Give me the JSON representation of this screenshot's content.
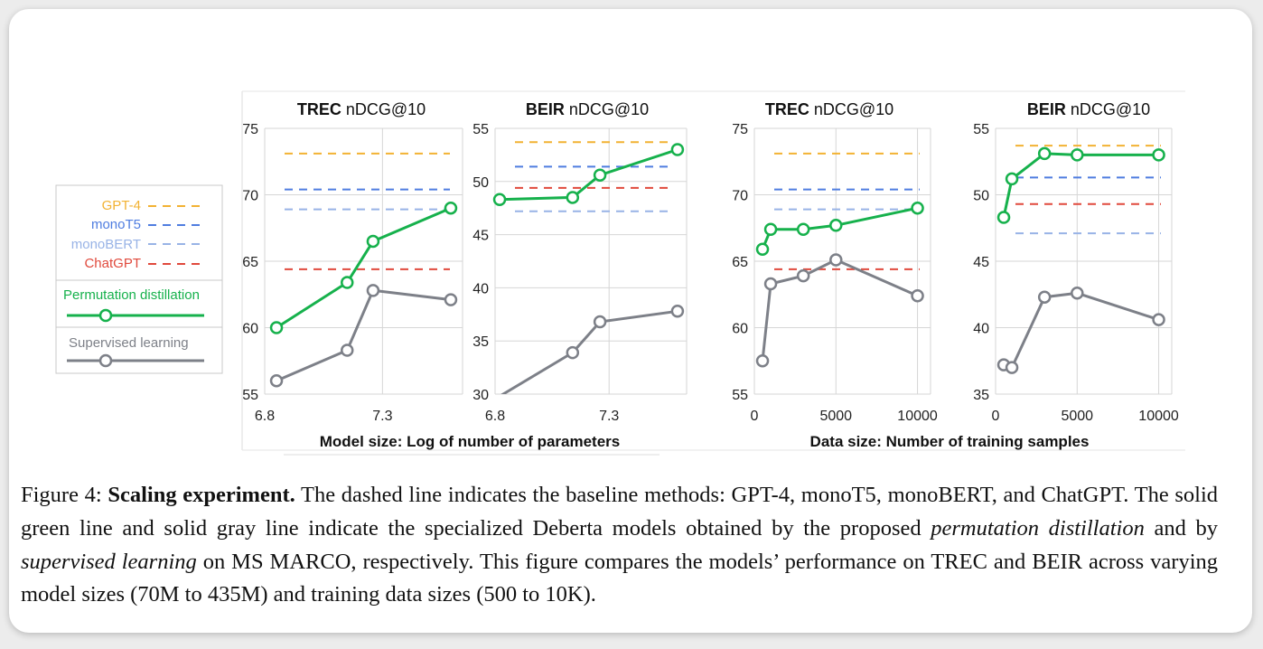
{
  "colors": {
    "gpt4": "#f2b233",
    "monot5": "#4f7de0",
    "monobert": "#98b3e6",
    "chatgpt": "#e0493c",
    "permutation": "#16b14c",
    "supervised": "#7d8088",
    "grid": "#d6d6d6"
  },
  "legend": {
    "gpt4": "GPT-4",
    "monot5": "monoT5",
    "monobert": "monoBERT",
    "chatgpt": "ChatGPT",
    "permutation": "Permutation distillation",
    "supervised": "Supervised learning"
  },
  "xlabels": {
    "left": "Model size: Log of number of parameters",
    "right": "Data size: Number of training samples"
  },
  "chart_data": [
    {
      "type": "line",
      "title_bold": "TREC",
      "title_rest": "nDCG@10",
      "ylim": [
        55,
        75
      ],
      "yticks": [
        55,
        60,
        65,
        70,
        75
      ],
      "xlim": [
        6.8,
        7.64
      ],
      "xticks": [
        6.8,
        7.3
      ],
      "xtick_labels": [
        "6.8",
        "7.3"
      ],
      "baselines": {
        "GPT-4": 73.1,
        "monoT5": 70.4,
        "monoBERT": 68.9,
        "ChatGPT": 64.4
      },
      "series": [
        {
          "name": "Permutation distillation",
          "x": [
            6.85,
            7.15,
            7.26,
            7.59
          ],
          "y": [
            60.0,
            63.4,
            66.5,
            69.0
          ]
        },
        {
          "name": "Supervised learning",
          "x": [
            6.85,
            7.15,
            7.26,
            7.59
          ],
          "y": [
            56.0,
            58.3,
            62.8,
            62.1
          ]
        }
      ]
    },
    {
      "type": "line",
      "title_bold": "BEIR",
      "title_rest": "nDCG@10",
      "ylim": [
        30,
        55
      ],
      "yticks": [
        30,
        35,
        40,
        45,
        50,
        55
      ],
      "xlim": [
        6.8,
        7.64
      ],
      "xticks": [
        6.8,
        7.3
      ],
      "xtick_labels": [
        "6.8",
        "7.3"
      ],
      "baselines": {
        "GPT-4": 53.7,
        "monoT5": 51.4,
        "monoBERT": 47.2,
        "ChatGPT": 49.4
      },
      "series": [
        {
          "name": "Permutation distillation",
          "x": [
            6.82,
            7.14,
            7.26,
            7.6
          ],
          "y": [
            48.3,
            48.5,
            50.6,
            53.0
          ]
        },
        {
          "name": "Supervised learning",
          "x": [
            6.82,
            7.14,
            7.26,
            7.6
          ],
          "y": [
            29.8,
            33.9,
            36.8,
            37.8
          ]
        }
      ]
    },
    {
      "type": "line",
      "title_bold": "TREC",
      "title_rest": "nDCG@10",
      "ylim": [
        55,
        75
      ],
      "yticks": [
        55,
        60,
        65,
        70,
        75
      ],
      "xlim": [
        0,
        10800
      ],
      "xticks": [
        0,
        5000,
        10000
      ],
      "xtick_labels": [
        "0",
        "5000",
        "10000"
      ],
      "baselines": {
        "GPT-4": 73.1,
        "monoT5": 70.4,
        "monoBERT": 68.9,
        "ChatGPT": 64.4
      },
      "series": [
        {
          "name": "Permutation distillation",
          "x": [
            500,
            1000,
            3000,
            5000,
            10000
          ],
          "y": [
            65.9,
            67.4,
            67.4,
            67.7,
            69.0
          ]
        },
        {
          "name": "Supervised learning",
          "x": [
            500,
            1000,
            3000,
            5000,
            10000
          ],
          "y": [
            57.5,
            63.3,
            63.9,
            65.1,
            62.4
          ]
        }
      ]
    },
    {
      "type": "line",
      "title_bold": "BEIR",
      "title_rest": "nDCG@10",
      "ylim": [
        35,
        55
      ],
      "yticks": [
        35,
        40,
        45,
        50,
        55
      ],
      "xlim": [
        0,
        10800
      ],
      "xticks": [
        0,
        5000,
        10000
      ],
      "xtick_labels": [
        "0",
        "5000",
        "10000"
      ],
      "baselines": {
        "GPT-4": 53.7,
        "monoT5": 51.3,
        "monoBERT": 47.1,
        "ChatGPT": 49.3
      },
      "series": [
        {
          "name": "Permutation distillation",
          "x": [
            500,
            1000,
            3000,
            5000,
            10000
          ],
          "y": [
            48.3,
            51.2,
            53.1,
            53.0,
            53.0
          ]
        },
        {
          "name": "Supervised learning",
          "x": [
            500,
            1000,
            3000,
            5000,
            10000
          ],
          "y": [
            37.2,
            37.0,
            42.3,
            42.6,
            40.6
          ]
        }
      ]
    }
  ],
  "caption": {
    "label": "Figure 4:",
    "bold": "Scaling experiment.",
    "part1": " The dashed line indicates the baseline methods: GPT-4, monoT5, monoBERT, and ChatGPT. The solid green line and solid gray line indicate the specialized Deberta models obtained by the proposed ",
    "italic1": "permutation distillation",
    "part2": " and by ",
    "italic2": "supervised learning",
    "part3": " on MS MARCO, respectively. This figure compares the models’ performance on TREC and BEIR across varying model sizes (70M to 435M) and training data sizes (500 to 10K)."
  }
}
